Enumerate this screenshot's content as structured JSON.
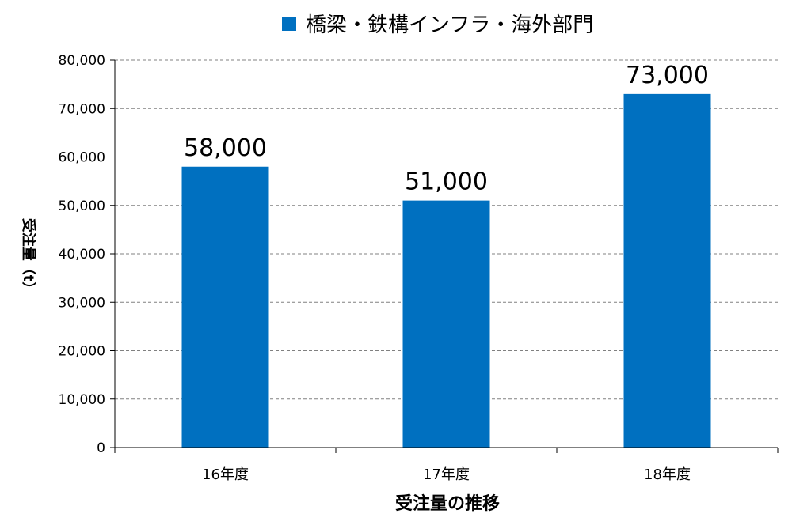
{
  "chart_data": {
    "type": "bar",
    "title": "",
    "xlabel": "受注量の推移",
    "ylabel": "受注量（t）",
    "categories": [
      "16年度",
      "17年度",
      "18年度"
    ],
    "series": [
      {
        "name": "橋梁・鉄構インフラ・海外部門",
        "values": [
          58000,
          51000,
          73000
        ],
        "color": "#0070c0"
      }
    ],
    "data_labels": [
      "58,000",
      "51,000",
      "73,000"
    ],
    "yticks": [
      "0",
      "10,000",
      "20,000",
      "30,000",
      "40,000",
      "50,000",
      "60,000",
      "70,000",
      "80,000"
    ],
    "ylim": [
      0,
      80000
    ],
    "grid": true,
    "grid_style": "dashed",
    "legend_position": "top-center"
  }
}
